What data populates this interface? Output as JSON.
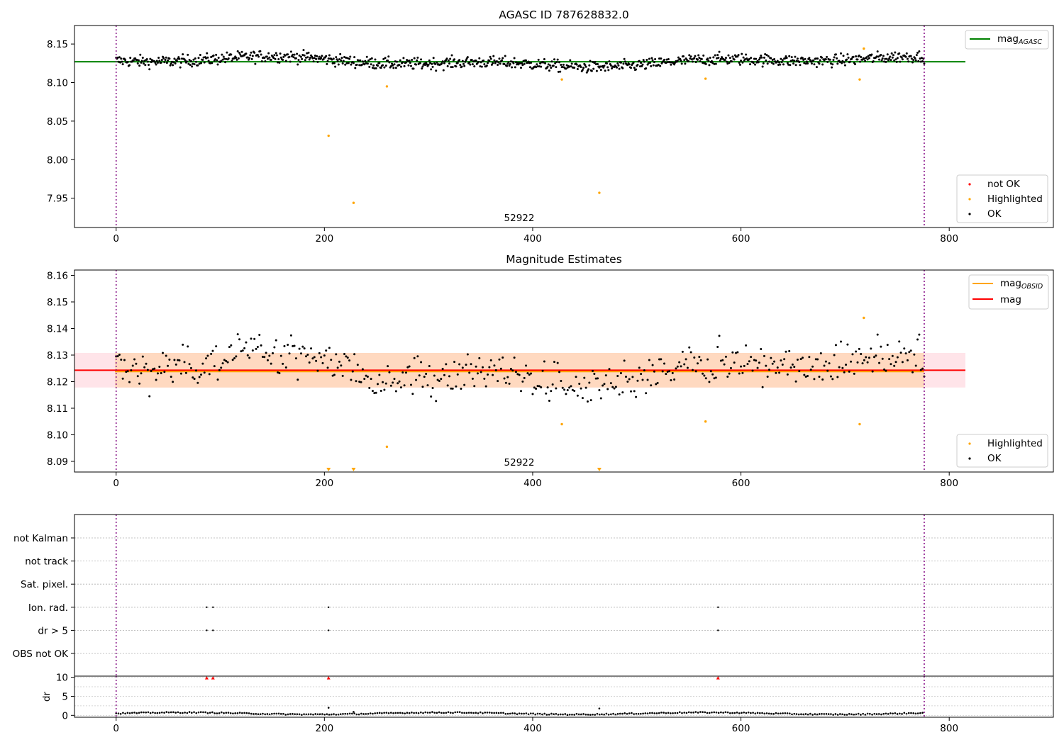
{
  "figure_title": "AGASC ID 787628832.0",
  "colors": {
    "ok": "#000000",
    "highlighted": "#ffa500",
    "not_ok": "#ff0000",
    "mag_agasc": "#008000",
    "mag_obsid": "#ffa500",
    "mag": "#ff0000",
    "obsid_line": "#800080",
    "band_obsid": "#ffdcc4",
    "band_mag": "#ffe4e9"
  },
  "chart_data": [
    {
      "id": "agasc",
      "type": "scatter",
      "title": "AGASC ID 787628832.0",
      "xlim": [
        -40,
        900
      ],
      "ylim": [
        7.912,
        8.174
      ],
      "xticks": [
        "0",
        "200",
        "400",
        "600",
        "800"
      ],
      "yticks": [
        "7.95",
        "8.00",
        "8.05",
        "8.10",
        "8.15"
      ],
      "obsid_label": "52922",
      "obsid_bounds": [
        0,
        776
      ],
      "mag_agasc": 8.127,
      "legend_lines": [
        {
          "label": "mag",
          "sub": "AGASC"
        }
      ],
      "legend_markers": [
        "not OK",
        "Highlighted",
        "OK"
      ],
      "highlighted_points": [
        {
          "x": 204,
          "y": 8.031
        },
        {
          "x": 228,
          "y": 7.944
        },
        {
          "x": 260,
          "y": 8.095
        },
        {
          "x": 428,
          "y": 8.104
        },
        {
          "x": 464,
          "y": 7.957
        },
        {
          "x": 566,
          "y": 8.105
        },
        {
          "x": 714,
          "y": 8.104
        },
        {
          "x": 718,
          "y": 8.144
        }
      ]
    },
    {
      "id": "estimates",
      "type": "scatter",
      "title": "Magnitude Estimates",
      "xlim": [
        -40,
        900
      ],
      "ylim": [
        8.086,
        8.162
      ],
      "xticks": [
        "0",
        "200",
        "400",
        "600",
        "800"
      ],
      "yticks": [
        "8.09",
        "8.10",
        "8.11",
        "8.12",
        "8.13",
        "8.14",
        "8.15",
        "8.16"
      ],
      "obsid_label": "52922",
      "obsid_bounds": [
        0,
        776
      ],
      "mag_obsid": 8.1238,
      "mag": 8.1243,
      "band_obsid": [
        8.1178,
        8.1308
      ],
      "band_mag": [
        8.1178,
        8.1308
      ],
      "legend_lines": [
        {
          "label": "mag",
          "sub": "OBSID"
        },
        {
          "label": "mag",
          "sub": ""
        }
      ],
      "legend_markers": [
        "Highlighted",
        "OK"
      ],
      "highlighted_points": [
        {
          "x": 428,
          "y": 8.104
        },
        {
          "x": 566,
          "y": 8.105
        },
        {
          "x": 714,
          "y": 8.104
        },
        {
          "x": 718,
          "y": 8.144
        },
        {
          "x": 260,
          "y": 8.0955
        }
      ],
      "offscale_low_points": [
        204,
        228,
        464
      ]
    },
    {
      "id": "flags",
      "type": "scatter",
      "xlim": [
        -40,
        900
      ],
      "xticks": [
        "0",
        "200",
        "400",
        "600",
        "800"
      ],
      "categories": [
        "not Kalman",
        "not track",
        "Sat. pixel.",
        "Ion. rad.",
        "dr > 5",
        "OBS not OK"
      ],
      "flag_points": [
        {
          "flag": "Ion. rad.",
          "x": [
            87,
            93,
            204,
            578
          ]
        },
        {
          "flag": "dr > 5",
          "x": [
            87,
            93,
            204,
            578
          ]
        }
      ],
      "obsid_bounds": [
        0,
        776
      ]
    },
    {
      "id": "dr",
      "type": "scatter",
      "ylabel": "dr",
      "xlim": [
        -40,
        900
      ],
      "ylim": [
        -0.5,
        10.3
      ],
      "xticks": [
        "0",
        "200",
        "400",
        "600",
        "800"
      ],
      "yticks": [
        "0",
        "5",
        "10"
      ],
      "clipped_points": [
        87,
        93,
        204,
        578
      ],
      "outlier_points": [
        {
          "x": 204,
          "y": 2.0
        },
        {
          "x": 464,
          "y": 1.8
        },
        {
          "x": 228,
          "y": 0.9
        }
      ],
      "obsid_bounds": [
        0,
        776
      ]
    }
  ]
}
